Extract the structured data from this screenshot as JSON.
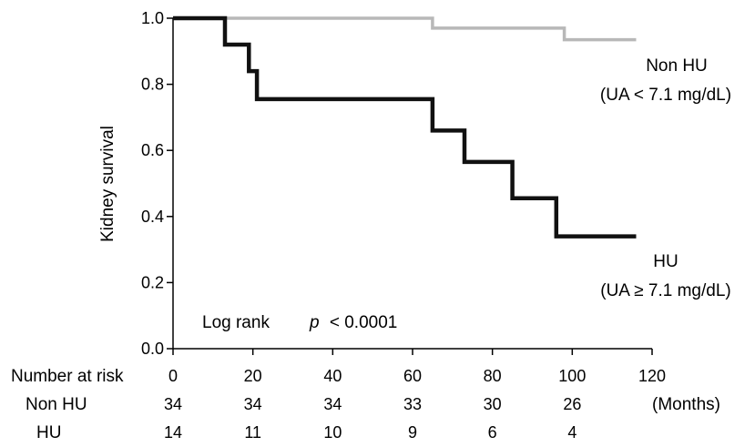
{
  "chart_data": {
    "type": "line",
    "ylabel": "Kidney survival",
    "xlim": [
      0,
      120
    ],
    "ylim": [
      0.0,
      1.0
    ],
    "x_ticks": [
      "0",
      "20",
      "40",
      "60",
      "80",
      "100",
      "120"
    ],
    "y_ticks": [
      "0.0",
      "0.2",
      "0.4",
      "0.6",
      "0.8",
      "1.0"
    ],
    "grid": false,
    "series": [
      {
        "name": "Non HU",
        "sublabel": "(UA < 7.1 mg/dL)",
        "color": "#b8b8b8",
        "step": true,
        "x": [
          0,
          65,
          65,
          98,
          98,
          116
        ],
        "y": [
          1.0,
          1.0,
          0.97,
          0.97,
          0.935,
          0.935
        ]
      },
      {
        "name": "HU",
        "sublabel": "(UA ≥ 7.1 mg/dL)",
        "color": "#111111",
        "step": true,
        "x": [
          0,
          13,
          13,
          19,
          19,
          21,
          21,
          65,
          65,
          73,
          73,
          85,
          85,
          96,
          96,
          116
        ],
        "y": [
          1.0,
          1.0,
          0.92,
          0.92,
          0.84,
          0.84,
          0.755,
          0.755,
          0.66,
          0.66,
          0.565,
          0.565,
          0.455,
          0.455,
          0.34,
          0.34
        ]
      }
    ],
    "annotation": {
      "prefix": "Log rank",
      "p_symbol": "p",
      "p_value": "< 0.0001"
    },
    "risk_table": {
      "header": "Number at risk",
      "unit": "(Months)",
      "rows": [
        {
          "label": "Non HU",
          "values": [
            "34",
            "34",
            "34",
            "33",
            "30",
            "26"
          ]
        },
        {
          "label": "HU",
          "values": [
            "14",
            "11",
            "10",
            "9",
            "6",
            "4"
          ]
        }
      ]
    }
  }
}
